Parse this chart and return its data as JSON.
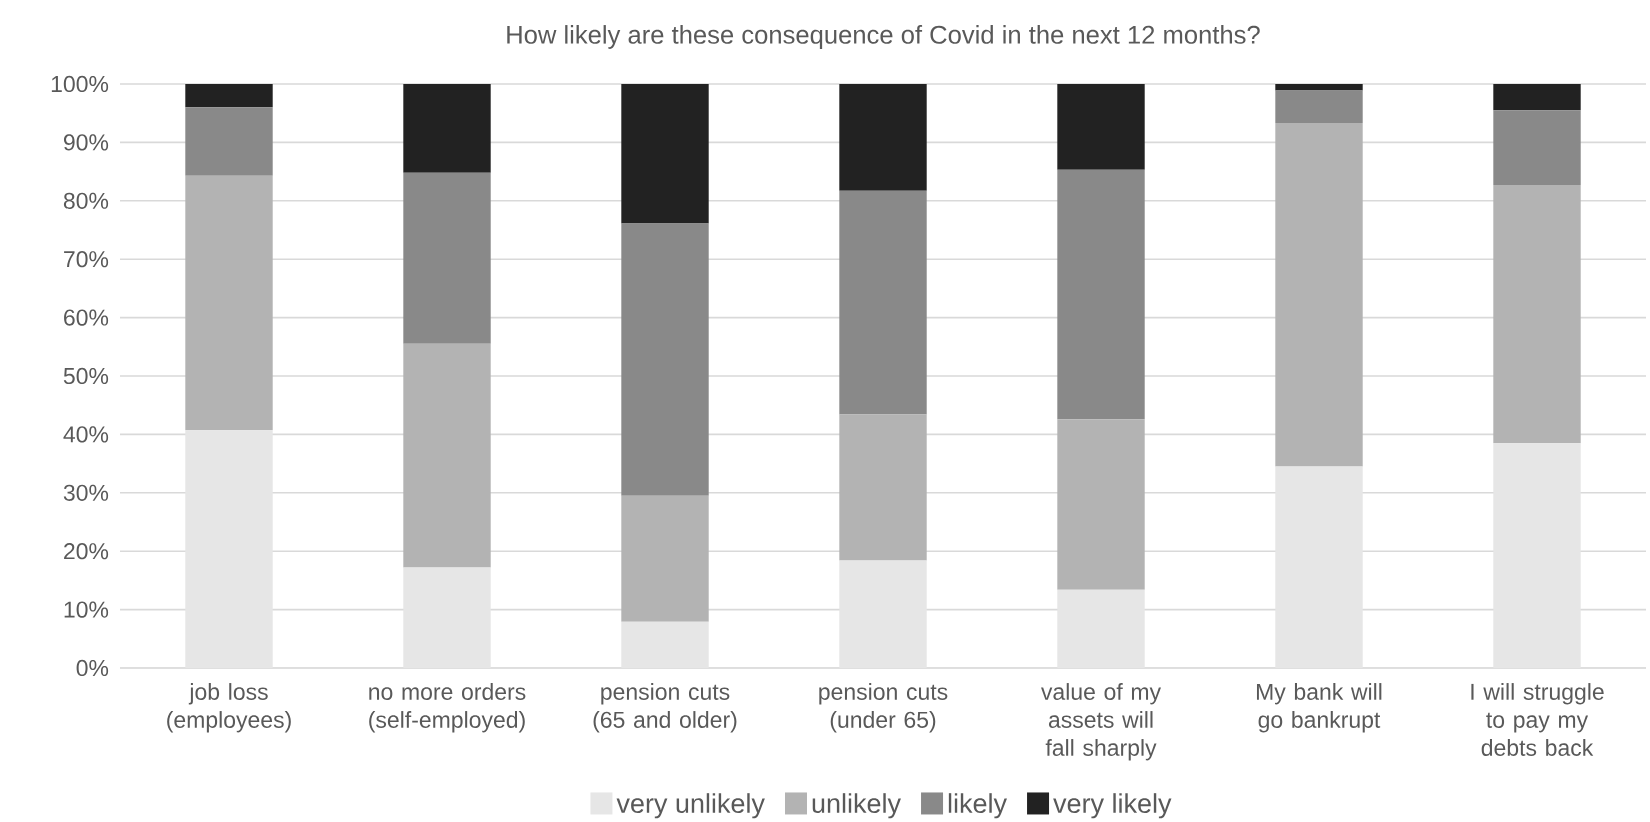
{
  "chart_data": {
    "type": "bar",
    "title": "How likely are these consequence of Covid in the next 12 months?",
    "categories": [
      "job loss (employees)",
      "no more orders (self-employed)",
      "pension cuts (65 and older)",
      "pension cuts (under 65)",
      "value of my assets will fall sharply",
      "My bank will go bankrupt",
      "I will struggle to pay my debts back"
    ],
    "stacked": true,
    "series": [
      {
        "name": "very unlikely",
        "color": "#e6e6e6",
        "values": [
          40.7,
          17.2,
          7.9,
          18.4,
          13.4,
          34.5,
          38.5
        ]
      },
      {
        "name": "unlikely",
        "color": "#b3b3b3",
        "values": [
          43.6,
          38.3,
          21.6,
          25.0,
          29.2,
          58.8,
          44.2
        ]
      },
      {
        "name": "likely",
        "color": "#898989",
        "values": [
          11.7,
          29.3,
          46.6,
          38.3,
          42.7,
          5.6,
          12.8
        ]
      },
      {
        "name": "very likely",
        "color": "#222222",
        "values": [
          4.0,
          15.2,
          23.9,
          18.3,
          14.7,
          1.1,
          4.5
        ]
      }
    ],
    "ylim": [
      0,
      100
    ],
    "yticks": [
      {
        "value": 0,
        "label": "0%"
      },
      {
        "value": 10,
        "label": "10%"
      },
      {
        "value": 20,
        "label": "20%"
      },
      {
        "value": 30,
        "label": "30%"
      },
      {
        "value": 40,
        "label": "40%"
      },
      {
        "value": 50,
        "label": "50%"
      },
      {
        "value": 60,
        "label": "60%"
      },
      {
        "value": 70,
        "label": "70%"
      },
      {
        "value": 80,
        "label": "80%"
      },
      {
        "value": 90,
        "label": "90%"
      },
      {
        "value": 100,
        "label": "100%"
      }
    ],
    "grid": "y",
    "legend": "bottom"
  }
}
